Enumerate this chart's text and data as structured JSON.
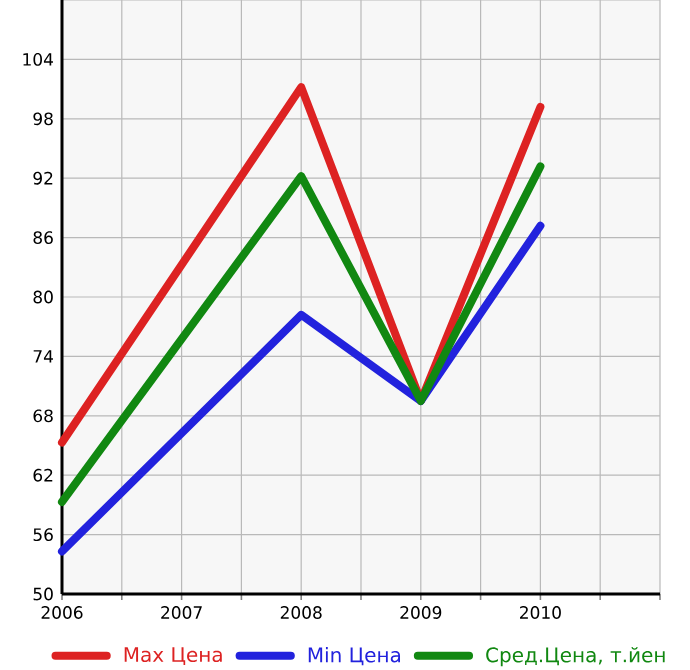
{
  "chart_data": {
    "type": "line",
    "x": [
      2006,
      2007,
      2008,
      2009,
      2010
    ],
    "series": [
      {
        "name": "Max Цена",
        "color": "#dd2222",
        "values": [
          65.3,
          null,
          101.2,
          69.5,
          99.2
        ]
      },
      {
        "name": "Min Цена",
        "color": "#2222dd",
        "values": [
          54.3,
          null,
          78.2,
          69.5,
          87.2
        ]
      },
      {
        "name": "Сред.Цена, т.йен",
        "color": "#118811",
        "values": [
          59.3,
          null,
          92.2,
          69.5,
          93.2
        ]
      }
    ],
    "xlim": [
      2006,
      2011
    ],
    "xticks": [
      2006,
      {
        "value": 2006.5,
        "label": null
      },
      2007,
      {
        "value": 2007.5,
        "label": null
      },
      2008,
      {
        "value": 2008.5,
        "label": null
      },
      2009,
      {
        "value": 2009.5,
        "label": null
      },
      2010,
      {
        "value": 2010.5,
        "label": null
      },
      {
        "value": 2011,
        "label": null
      }
    ],
    "ylim": [
      50,
      110
    ],
    "yticks": [
      50,
      56,
      62,
      68,
      74,
      80,
      86,
      92,
      98,
      104,
      {
        "value": 110,
        "label": null
      }
    ],
    "grid": true,
    "legend": "bottom",
    "marker": "none",
    "line_style": "solid"
  }
}
